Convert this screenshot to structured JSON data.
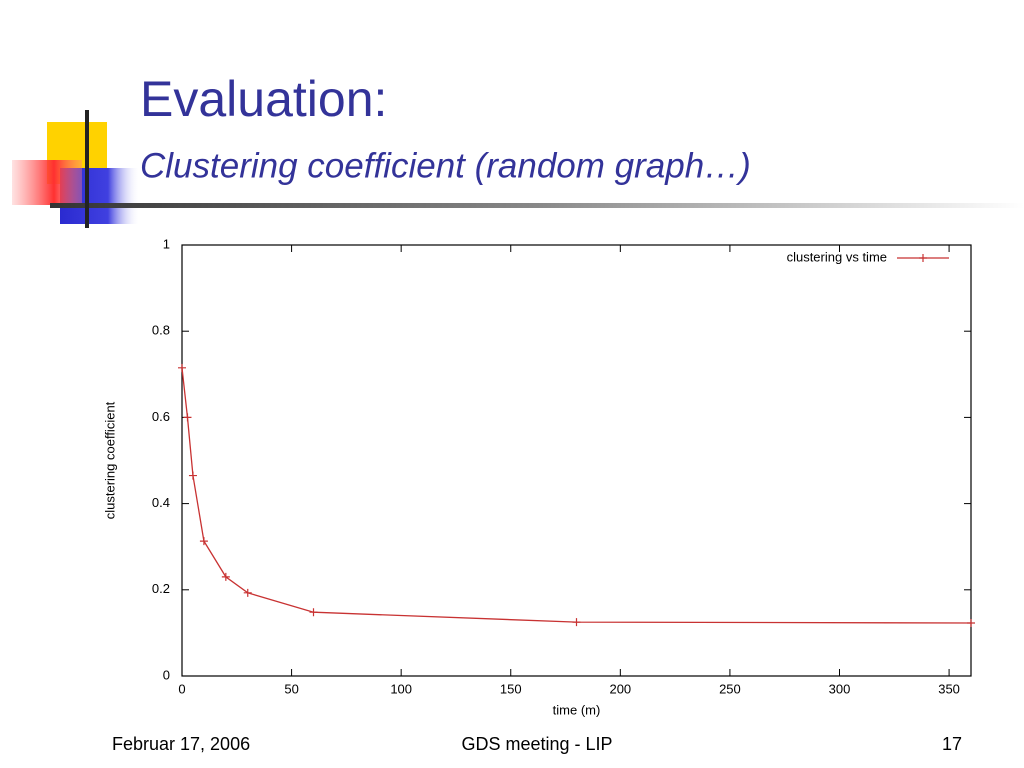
{
  "slide": {
    "title": "Evaluation:",
    "subtitle": "Clustering coefficient (random graph…)"
  },
  "footer": {
    "date": "Februar 17, 2006",
    "event": "GDS meeting - LIP",
    "page": "17"
  },
  "chart_data": {
    "type": "line",
    "marker": "+",
    "x_label": "time (m)",
    "y_label": "clustering coefficient",
    "x": [
      0,
      2.5,
      5,
      10,
      20,
      30,
      60,
      180,
      360
    ],
    "series": [
      {
        "name": "clustering vs time",
        "color": "#c83232",
        "values": [
          0.715,
          0.6,
          0.465,
          0.313,
          0.23,
          0.193,
          0.148,
          0.125,
          0.123
        ]
      }
    ],
    "xlim": [
      0,
      360
    ],
    "xticks": [
      0,
      50,
      100,
      150,
      200,
      250,
      300,
      350
    ],
    "ylim": [
      0,
      1
    ],
    "yticks": [
      0,
      0.2,
      0.4,
      0.6,
      0.8,
      1
    ],
    "legend": "upper right",
    "grid": false
  }
}
